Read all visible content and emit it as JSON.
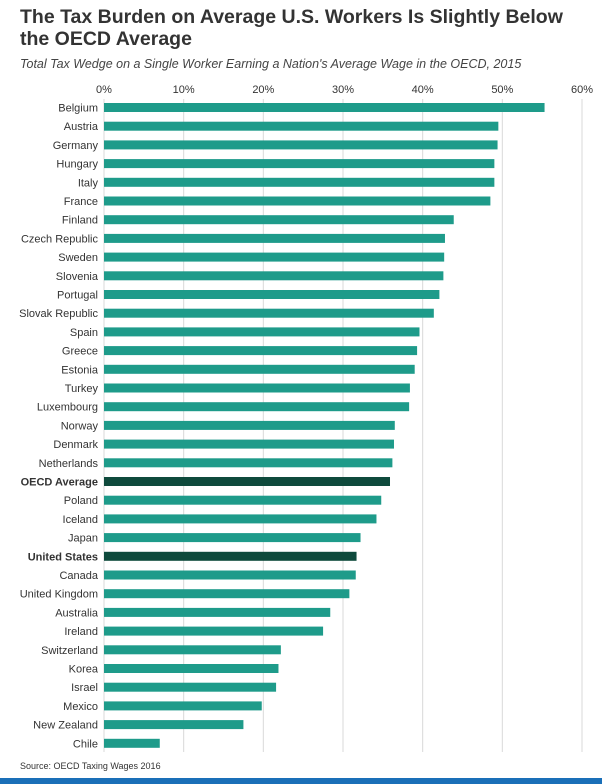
{
  "title": "The Tax Burden on Average U.S. Workers Is Slightly Below the OECD Average",
  "subtitle": "Total Tax Wedge on a Single Worker Earning a Nation's Average Wage in the OECD, 2015",
  "source": "Source: OECD Taxing Wages 2016",
  "colors": {
    "bar": "#1e9b8a",
    "highlight": "#0e4a3c",
    "grid": "#d9d9d9",
    "footer": "#1a6fb8"
  },
  "chart_data": {
    "type": "bar",
    "orientation": "horizontal",
    "xlim": [
      0,
      60
    ],
    "x_ticks": [
      "0%",
      "10%",
      "20%",
      "30%",
      "40%",
      "50%",
      "60%"
    ],
    "grid": true,
    "axis_position": "top",
    "highlighted": [
      "OECD Average",
      "United States"
    ],
    "categories": [
      "Belgium",
      "Austria",
      "Germany",
      "Hungary",
      "Italy",
      "France",
      "Finland",
      "Czech Republic",
      "Sweden",
      "Slovenia",
      "Portugal",
      "Slovak Republic",
      "Spain",
      "Greece",
      "Estonia",
      "Turkey",
      "Luxembourg",
      "Norway",
      "Denmark",
      "Netherlands",
      "OECD Average",
      "Poland",
      "Iceland",
      "Japan",
      "United States",
      "Canada",
      "United Kingdom",
      "Australia",
      "Ireland",
      "Switzerland",
      "Korea",
      "Israel",
      "Mexico",
      "New Zealand",
      "Chile"
    ],
    "values": [
      55.3,
      49.5,
      49.4,
      49.0,
      49.0,
      48.5,
      43.9,
      42.8,
      42.7,
      42.6,
      42.1,
      41.4,
      39.6,
      39.3,
      39.0,
      38.4,
      38.3,
      36.5,
      36.4,
      36.2,
      35.9,
      34.8,
      34.2,
      32.2,
      31.7,
      31.6,
      30.8,
      28.4,
      27.5,
      22.2,
      21.9,
      21.6,
      19.8,
      17.5,
      7.0
    ]
  }
}
